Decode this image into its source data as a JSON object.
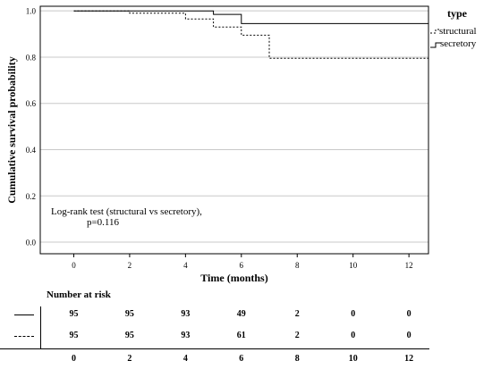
{
  "chart_data": {
    "type": "line",
    "step": true,
    "xlabel": "Time (months)",
    "ylabel": "Cumulative survival probability",
    "xlim": [
      -1.2,
      12.7
    ],
    "ylim": [
      -0.05,
      1.02
    ],
    "xticks": [
      0,
      2,
      4,
      6,
      8,
      10,
      12
    ],
    "xtick_labels": [
      "0",
      "2",
      "4",
      "6",
      "8",
      "10",
      "12"
    ],
    "yticks": [
      0,
      0.2,
      0.4,
      0.6,
      0.8,
      1.0
    ],
    "ytick_labels": [
      "0.0",
      "0.2",
      "0.4",
      "0.6",
      "0.8",
      "1.0"
    ],
    "grid": "horizontal",
    "legend": {
      "title": "type",
      "placement": "right",
      "entries": [
        {
          "label": "structural",
          "style": "dashed"
        },
        {
          "label": "secretory",
          "style": "solid"
        }
      ]
    },
    "annotation": [
      "Log-rank test (structural vs secretory),",
      "p=0.116"
    ],
    "series": [
      {
        "name": "secretory",
        "style": "solid",
        "color": "#000000",
        "x": [
          0,
          5,
          5,
          6,
          6,
          12.7
        ],
        "y": [
          1.0,
          1.0,
          0.985,
          0.985,
          0.945,
          0.945
        ]
      },
      {
        "name": "structural",
        "style": "dashed",
        "color": "#000000",
        "x": [
          0,
          2,
          2,
          4,
          4,
          5,
          5,
          6,
          6,
          7,
          7,
          12.7
        ],
        "y": [
          1.0,
          1.0,
          0.99,
          0.99,
          0.965,
          0.965,
          0.93,
          0.93,
          0.895,
          0.895,
          0.795,
          0.795
        ]
      }
    ],
    "risk_table": {
      "title": "Number at risk",
      "times": [
        0,
        2,
        4,
        6,
        8,
        10,
        12
      ],
      "time_labels": [
        "0",
        "2",
        "4",
        "6",
        "8",
        "10",
        "12"
      ],
      "rows": [
        {
          "style": "solid",
          "values": [
            "95",
            "95",
            "93",
            "49",
            "2",
            "0",
            "0"
          ]
        },
        {
          "style": "dashed",
          "values": [
            "95",
            "95",
            "93",
            "61",
            "2",
            "0",
            "0"
          ]
        }
      ]
    }
  }
}
